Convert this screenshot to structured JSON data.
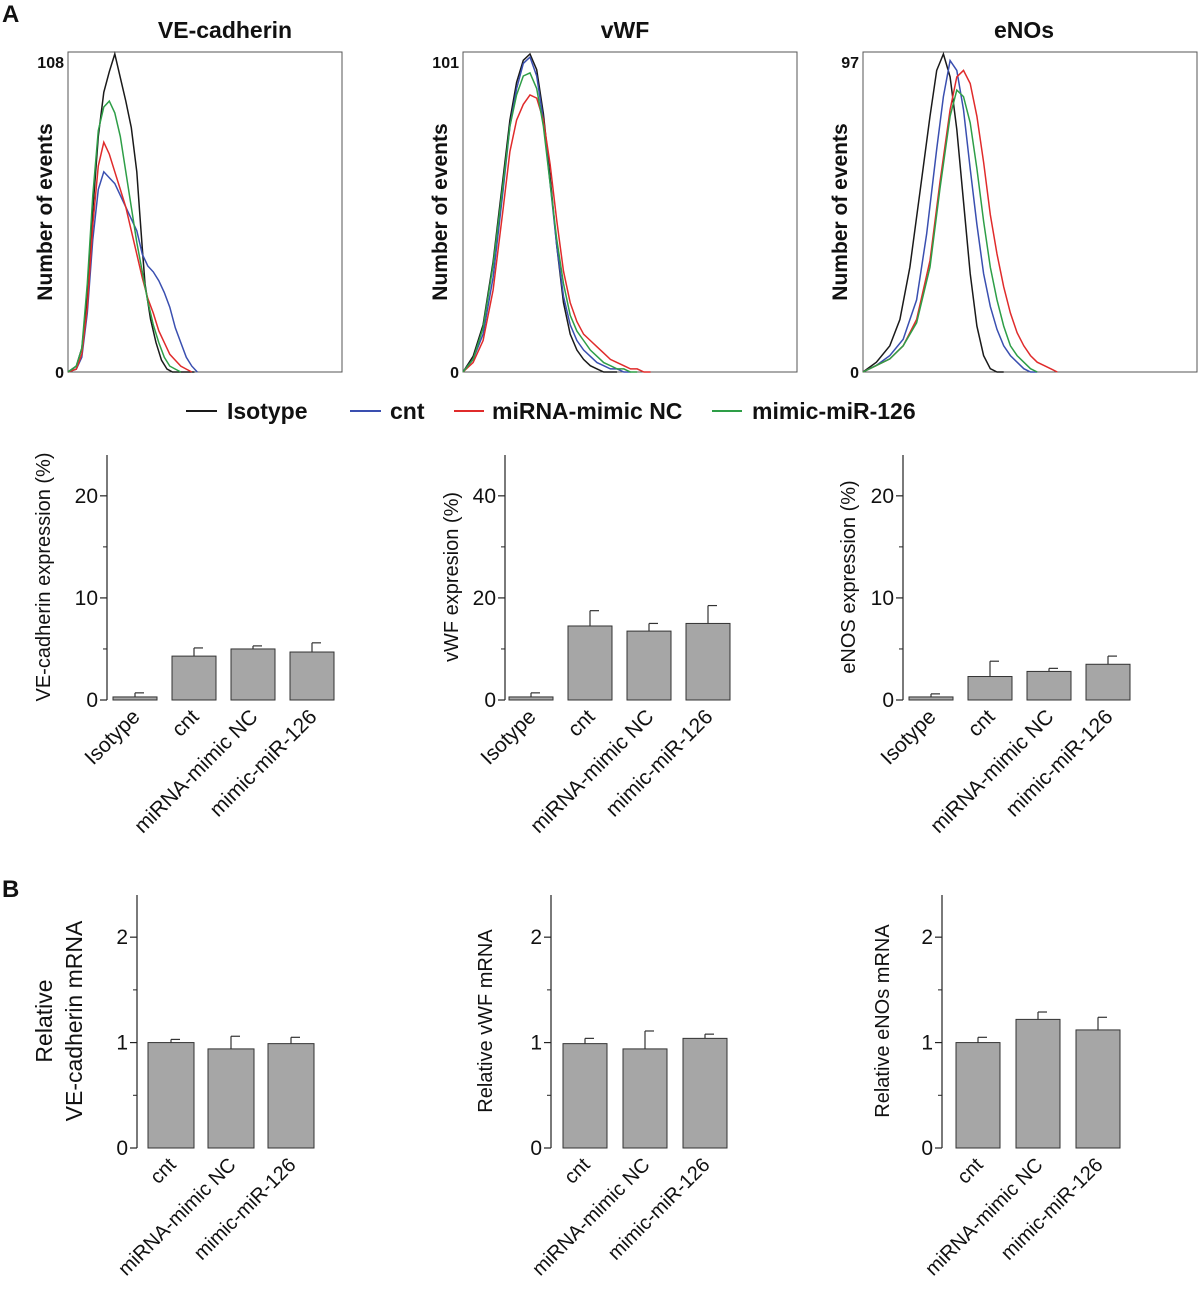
{
  "panel_labels": {
    "a": "A",
    "b": "B"
  },
  "legend": [
    {
      "label": "Isotype",
      "color": "#1a1a1a"
    },
    {
      "label": "cnt",
      "color": "#3a4fb0"
    },
    {
      "label": "miRNA-mimic NC",
      "color": "#e02b2b"
    },
    {
      "label": "mimic-miR-126",
      "color": "#2e9e47"
    }
  ],
  "bar_color": "#a6a6a6",
  "chart_data": [
    {
      "id": "hist-ve",
      "type": "line",
      "title": "VE-cadherin",
      "ylabel": "Number of events",
      "ymax_label": "108",
      "ymin_label": "0",
      "ylim": [
        0,
        108
      ],
      "xlim": [
        0,
        100
      ],
      "series": [
        {
          "name": "Isotype",
          "x": [
            0,
            3,
            5,
            7,
            9,
            11,
            13,
            15,
            17,
            19,
            21,
            23,
            25,
            26,
            27,
            28,
            30,
            32,
            34,
            36,
            38,
            40,
            42,
            44,
            46
          ],
          "y": [
            0,
            2,
            8,
            25,
            55,
            80,
            95,
            102,
            108,
            100,
            92,
            83,
            68,
            55,
            42,
            30,
            18,
            10,
            4,
            1,
            0,
            0,
            0,
            0,
            0
          ]
        },
        {
          "name": "cnt",
          "x": [
            0,
            3,
            5,
            7,
            9,
            11,
            13,
            15,
            17,
            19,
            21,
            23,
            25,
            27,
            29,
            31,
            33,
            35,
            37,
            39,
            41,
            43,
            45,
            47
          ],
          "y": [
            0,
            1,
            5,
            20,
            45,
            62,
            68,
            66,
            64,
            60,
            56,
            52,
            48,
            40,
            36,
            34,
            31,
            27,
            22,
            15,
            10,
            5,
            2,
            0
          ]
        },
        {
          "name": "miRNA-mimic NC",
          "x": [
            0,
            3,
            5,
            7,
            9,
            11,
            13,
            15,
            17,
            19,
            21,
            23,
            25,
            27,
            29,
            31,
            33,
            35,
            37,
            39,
            41,
            43,
            45
          ],
          "y": [
            0,
            1,
            6,
            22,
            50,
            70,
            78,
            74,
            68,
            62,
            56,
            48,
            40,
            32,
            25,
            20,
            14,
            10,
            6,
            4,
            2,
            1,
            0
          ]
        },
        {
          "name": "mimic-miR-126",
          "x": [
            0,
            3,
            5,
            7,
            9,
            11,
            13,
            15,
            17,
            19,
            21,
            23,
            25,
            27,
            29,
            31,
            33,
            35,
            37,
            39,
            41
          ],
          "y": [
            0,
            2,
            8,
            30,
            60,
            82,
            90,
            92,
            88,
            80,
            68,
            56,
            44,
            34,
            24,
            16,
            10,
            5,
            2,
            1,
            0
          ]
        }
      ]
    },
    {
      "id": "hist-vwf",
      "type": "line",
      "title": "vWF",
      "ylabel": "Number of events",
      "ymax_label": "101",
      "ymin_label": "0",
      "ylim": [
        0,
        101
      ],
      "xlim": [
        0,
        100
      ],
      "series": [
        {
          "name": "Isotype",
          "x": [
            0,
            3,
            6,
            9,
            12,
            14,
            16,
            18,
            20,
            22,
            24,
            26,
            28,
            30,
            32,
            34,
            36,
            38,
            40,
            42,
            44,
            46
          ],
          "y": [
            0,
            5,
            15,
            35,
            62,
            80,
            92,
            99,
            101,
            96,
            82,
            62,
            40,
            22,
            12,
            7,
            4,
            2,
            1,
            0,
            0,
            0
          ]
        },
        {
          "name": "cnt",
          "x": [
            0,
            3,
            6,
            9,
            12,
            14,
            16,
            18,
            20,
            22,
            24,
            26,
            28,
            30,
            32,
            34,
            36,
            38,
            40,
            42,
            44,
            46,
            48,
            50
          ],
          "y": [
            0,
            4,
            12,
            30,
            58,
            78,
            90,
            98,
            100,
            94,
            80,
            60,
            40,
            24,
            15,
            10,
            7,
            5,
            3,
            2,
            1,
            1,
            0,
            0
          ]
        },
        {
          "name": "miRNA-mimic NC",
          "x": [
            0,
            3,
            6,
            9,
            12,
            14,
            16,
            18,
            20,
            22,
            24,
            26,
            28,
            30,
            32,
            34,
            36,
            38,
            40,
            42,
            44,
            46,
            48,
            50,
            52,
            54,
            56
          ],
          "y": [
            0,
            3,
            10,
            26,
            52,
            70,
            80,
            85,
            88,
            87,
            80,
            66,
            48,
            32,
            22,
            16,
            12,
            10,
            8,
            6,
            4,
            3,
            2,
            1,
            1,
            0,
            0
          ]
        },
        {
          "name": "mimic-miR-126",
          "x": [
            0,
            3,
            6,
            9,
            12,
            14,
            16,
            18,
            20,
            22,
            24,
            26,
            28,
            30,
            32,
            34,
            36,
            38,
            40,
            42,
            44,
            46,
            48,
            50,
            52
          ],
          "y": [
            0,
            4,
            14,
            34,
            60,
            78,
            88,
            94,
            95,
            90,
            78,
            60,
            42,
            28,
            18,
            13,
            10,
            7,
            5,
            3,
            2,
            1,
            1,
            0,
            0
          ]
        }
      ]
    },
    {
      "id": "hist-enos",
      "type": "line",
      "title": "eNOs",
      "ylabel": "Number of events",
      "ymax_label": "97",
      "ymin_label": "0",
      "ylim": [
        0,
        97
      ],
      "xlim": [
        0,
        100
      ],
      "series": [
        {
          "name": "Isotype",
          "x": [
            0,
            4,
            8,
            11,
            14,
            17,
            20,
            22,
            24,
            26,
            28,
            30,
            32,
            34,
            36,
            38,
            40,
            42
          ],
          "y": [
            0,
            3,
            8,
            16,
            32,
            55,
            78,
            92,
            97,
            90,
            74,
            52,
            30,
            14,
            5,
            1,
            0,
            0
          ]
        },
        {
          "name": "cnt",
          "x": [
            0,
            4,
            8,
            12,
            16,
            19,
            22,
            24,
            26,
            28,
            30,
            32,
            34,
            36,
            38,
            40,
            42,
            44,
            46,
            48,
            50,
            52
          ],
          "y": [
            0,
            2,
            5,
            10,
            22,
            42,
            68,
            84,
            95,
            92,
            80,
            62,
            45,
            30,
            20,
            13,
            8,
            5,
            3,
            1,
            0,
            0
          ]
        },
        {
          "name": "miRNA-mimic NC",
          "x": [
            0,
            4,
            8,
            12,
            16,
            20,
            23,
            26,
            28,
            30,
            32,
            34,
            36,
            38,
            40,
            42,
            44,
            46,
            48,
            50,
            52,
            54,
            56,
            58
          ],
          "y": [
            0,
            2,
            4,
            8,
            16,
            34,
            58,
            80,
            90,
            92,
            88,
            78,
            64,
            48,
            36,
            26,
            18,
            12,
            8,
            5,
            3,
            2,
            1,
            0
          ]
        },
        {
          "name": "mimic-miR-126",
          "x": [
            0,
            4,
            8,
            12,
            16,
            20,
            23,
            26,
            28,
            30,
            32,
            34,
            36,
            38,
            40,
            42,
            44,
            46,
            48,
            50,
            52
          ],
          "y": [
            0,
            2,
            4,
            8,
            15,
            32,
            56,
            78,
            86,
            84,
            76,
            62,
            46,
            32,
            22,
            14,
            8,
            5,
            3,
            1,
            0
          ]
        }
      ]
    },
    {
      "id": "bar-ve",
      "type": "bar",
      "ylabel": "VE-cadherin expression (%)",
      "ylim": [
        0,
        24
      ],
      "yticks": [
        0,
        10,
        20
      ],
      "categories": [
        "Isotype",
        "cnt",
        "miRNA-mimic NC",
        "mimic-miR-126"
      ],
      "values": [
        0.3,
        4.3,
        5.0,
        4.7
      ],
      "errors": [
        0.4,
        0.8,
        0.3,
        0.9
      ]
    },
    {
      "id": "bar-vwf",
      "type": "bar",
      "ylabel": "vWF expresion (%)",
      "ylim": [
        0,
        48
      ],
      "yticks": [
        0,
        20,
        40
      ],
      "categories": [
        "Isotype",
        "cnt",
        "miRNA-mimic NC",
        "mimic-miR-126"
      ],
      "values": [
        0.6,
        14.5,
        13.5,
        15.0
      ],
      "errors": [
        0.8,
        3.0,
        1.5,
        3.5
      ]
    },
    {
      "id": "bar-enos",
      "type": "bar",
      "ylabel": "eNOS expression (%)",
      "ylim": [
        0,
        24
      ],
      "yticks": [
        0,
        10,
        20
      ],
      "categories": [
        "Isotype",
        "cnt",
        "miRNA-mimic NC",
        "mimic-miR-126"
      ],
      "values": [
        0.3,
        2.3,
        2.8,
        3.5
      ],
      "errors": [
        0.3,
        1.5,
        0.3,
        0.8
      ]
    },
    {
      "id": "mrna-ve",
      "type": "bar",
      "ylabel": [
        "Relative",
        "VE-cadherin mRNA"
      ],
      "ylim": [
        0,
        2.4
      ],
      "yticks": [
        0,
        1,
        2
      ],
      "categories": [
        "cnt",
        "miRNA-mimic NC",
        "mimic-miR-126"
      ],
      "values": [
        1.0,
        0.94,
        0.99
      ],
      "errors": [
        0.03,
        0.12,
        0.06
      ]
    },
    {
      "id": "mrna-vwf",
      "type": "bar",
      "ylabel": [
        "Relative vWF mRNA"
      ],
      "ylim": [
        0,
        2.4
      ],
      "yticks": [
        0,
        1,
        2
      ],
      "categories": [
        "cnt",
        "miRNA-mimic NC",
        "mimic-miR-126"
      ],
      "values": [
        0.99,
        0.94,
        1.04
      ],
      "errors": [
        0.05,
        0.17,
        0.04
      ]
    },
    {
      "id": "mrna-enos",
      "type": "bar",
      "ylabel": [
        "Relative eNOs mRNA"
      ],
      "ylim": [
        0,
        2.4
      ],
      "yticks": [
        0,
        1,
        2
      ],
      "categories": [
        "cnt",
        "miRNA-mimic NC",
        "mimic-miR-126"
      ],
      "values": [
        1.0,
        1.22,
        1.12
      ],
      "errors": [
        0.05,
        0.07,
        0.12
      ]
    }
  ]
}
